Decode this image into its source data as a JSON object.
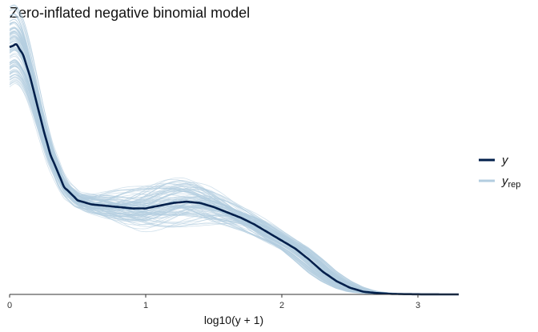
{
  "chart_data": {
    "type": "line",
    "title": "Zero-inflated negative binomial model",
    "xlabel": "log10(y + 1)",
    "ylabel": "",
    "xlim": [
      0,
      3.3
    ],
    "ylim": [
      0,
      1.0
    ],
    "x_ticks": [
      "0",
      "1",
      "2",
      "3"
    ],
    "grid": false,
    "legend_position": "right",
    "legend": [
      {
        "key": "y",
        "label": "y",
        "subscript": "",
        "color": "#011f4b"
      },
      {
        "key": "y_rep",
        "label": "y",
        "subscript": "rep",
        "color": "#b3cde0"
      }
    ],
    "series": [
      {
        "name": "y",
        "color": "#011f4b",
        "x": [
          0,
          0.05,
          0.1,
          0.15,
          0.2,
          0.25,
          0.3,
          0.4,
          0.5,
          0.6,
          0.7,
          0.8,
          0.9,
          1.0,
          1.1,
          1.2,
          1.3,
          1.4,
          1.5,
          1.6,
          1.7,
          1.8,
          1.9,
          2.0,
          2.1,
          2.2,
          2.3,
          2.4,
          2.5,
          2.6,
          2.7,
          2.8,
          2.9,
          3.0,
          3.1,
          3.2,
          3.3
        ],
        "values": [
          0.92,
          0.93,
          0.89,
          0.81,
          0.71,
          0.61,
          0.52,
          0.4,
          0.35,
          0.335,
          0.33,
          0.325,
          0.32,
          0.32,
          0.33,
          0.34,
          0.345,
          0.34,
          0.325,
          0.305,
          0.285,
          0.26,
          0.23,
          0.2,
          0.17,
          0.13,
          0.085,
          0.05,
          0.025,
          0.01,
          0.005,
          0.002,
          0.001,
          0.0005,
          0.0002,
          0.0001,
          0
        ]
      }
    ],
    "replicates": {
      "name": "y_rep",
      "count": 100,
      "color": "#b3cde0"
    }
  }
}
